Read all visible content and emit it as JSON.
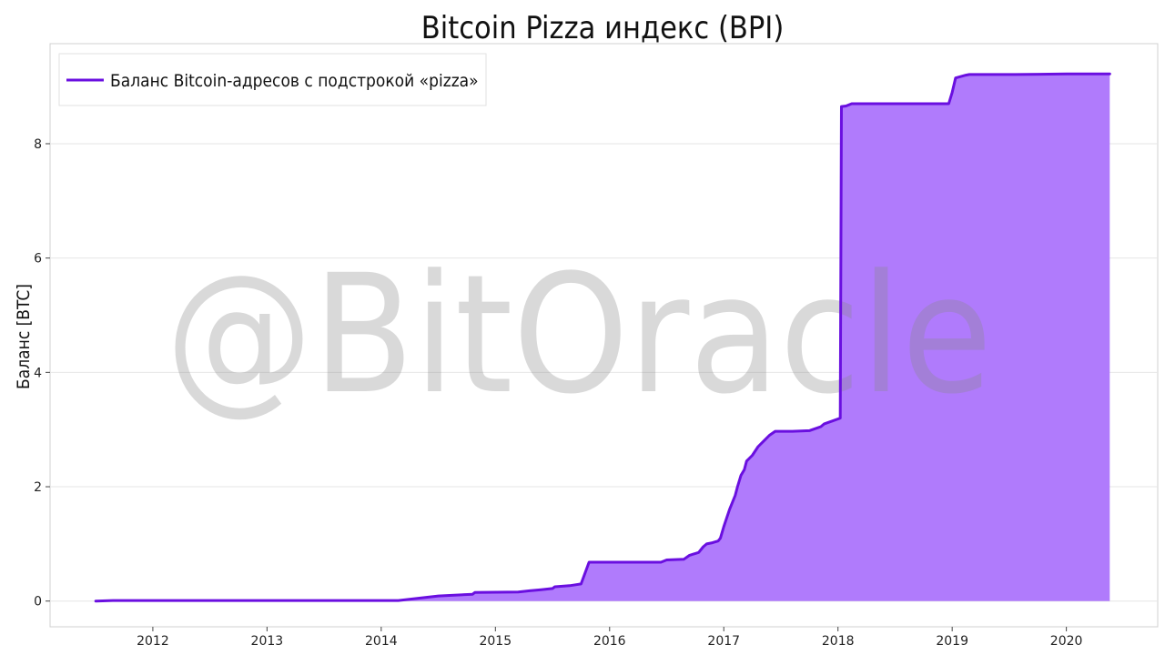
{
  "chart_data": {
    "type": "area",
    "title": "Bitcoin Pizza индекс (BPI)",
    "xlabel": "",
    "ylabel": "Баланс [BTC]",
    "watermark": "@BitOracle",
    "ylim": [
      -0.45,
      9.75
    ],
    "xlim": [
      2011.1,
      2020.8
    ],
    "xticks": [
      2012,
      2013,
      2014,
      2015,
      2016,
      2017,
      2018,
      2019,
      2020
    ],
    "yticks": [
      0,
      2,
      4,
      6,
      8
    ],
    "grid": true,
    "legend_position": "top-left",
    "colors": {
      "line": "#6a0fe0",
      "fill": "#b07bfc",
      "grid": "#e6e6e6",
      "frame": "#d0d0d0"
    },
    "series": [
      {
        "name": "Баланс Bitcoin-адресов с подстрокой «pizza»",
        "x": [
          2011.5,
          2011.65,
          2012.0,
          2013.0,
          2014.0,
          2014.15,
          2014.5,
          2014.8,
          2014.82,
          2015.2,
          2015.3,
          2015.4,
          2015.5,
          2015.52,
          2015.65,
          2015.75,
          2015.82,
          2016.0,
          2016.45,
          2016.5,
          2016.65,
          2016.7,
          2016.78,
          2016.82,
          2016.85,
          2016.9,
          2016.95,
          2016.97,
          2017.0,
          2017.05,
          2017.1,
          2017.12,
          2017.15,
          2017.18,
          2017.2,
          2017.25,
          2017.3,
          2017.35,
          2017.4,
          2017.45,
          2017.6,
          2017.75,
          2017.85,
          2017.88,
          2017.95,
          2018.02,
          2018.03,
          2018.07,
          2018.12,
          2018.14,
          2018.5,
          2018.97,
          2019.0,
          2019.03,
          2019.12,
          2019.15,
          2019.55,
          2020.0,
          2020.38
        ],
        "y": [
          0.0,
          0.01,
          0.01,
          0.01,
          0.01,
          0.01,
          0.09,
          0.12,
          0.15,
          0.16,
          0.18,
          0.2,
          0.22,
          0.25,
          0.27,
          0.3,
          0.68,
          0.68,
          0.68,
          0.72,
          0.73,
          0.8,
          0.85,
          0.95,
          1.0,
          1.02,
          1.05,
          1.1,
          1.3,
          1.6,
          1.85,
          2.0,
          2.2,
          2.3,
          2.45,
          2.55,
          2.7,
          2.8,
          2.9,
          2.97,
          2.97,
          2.98,
          3.05,
          3.1,
          3.15,
          3.2,
          8.65,
          8.66,
          8.7,
          8.7,
          8.7,
          8.7,
          8.9,
          9.15,
          9.2,
          9.21,
          9.21,
          9.22,
          9.22
        ]
      }
    ]
  }
}
